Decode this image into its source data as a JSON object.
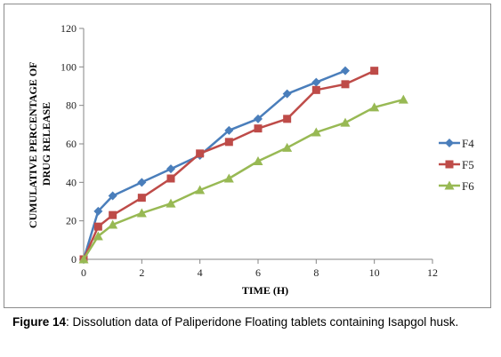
{
  "chart_data": {
    "type": "line",
    "x_label": "TIME  (H)",
    "y_label_line1": "CUMULATIVE PERCENTAGE OF",
    "y_label_line2": "DRUG RELEASE",
    "x_range": [
      0,
      12
    ],
    "y_range": [
      0,
      120
    ],
    "x_ticks": [
      0,
      2,
      4,
      6,
      8,
      10,
      12
    ],
    "y_ticks": [
      0,
      20,
      40,
      60,
      80,
      100,
      120
    ],
    "grid": false,
    "legend_position": "right",
    "series": [
      {
        "name": "F4",
        "color": "#4a7ebb",
        "marker": "diamond",
        "x": [
          0,
          0.5,
          1,
          2,
          3,
          4,
          5,
          6,
          7,
          8,
          9
        ],
        "y": [
          0,
          25,
          33,
          40,
          47,
          54,
          67,
          73,
          86,
          92,
          98
        ]
      },
      {
        "name": "F5",
        "color": "#be4b48",
        "marker": "square",
        "x": [
          0,
          0.5,
          1,
          2,
          3,
          4,
          5,
          6,
          7,
          8,
          9,
          10
        ],
        "y": [
          0,
          17,
          23,
          32,
          42,
          55,
          61,
          68,
          73,
          88,
          91,
          98
        ]
      },
      {
        "name": "F6",
        "color": "#98b954",
        "marker": "triangle",
        "x": [
          0,
          0.5,
          1,
          2,
          3,
          4,
          5,
          6,
          7,
          8,
          9,
          10,
          11
        ],
        "y": [
          0,
          12,
          18,
          24,
          29,
          36,
          42,
          51,
          58,
          66,
          71,
          79,
          83
        ]
      }
    ]
  },
  "caption": {
    "label": "Figure 14",
    "text": ": Dissolution data of Paliperidone Floating tablets containing Isapgol husk."
  }
}
